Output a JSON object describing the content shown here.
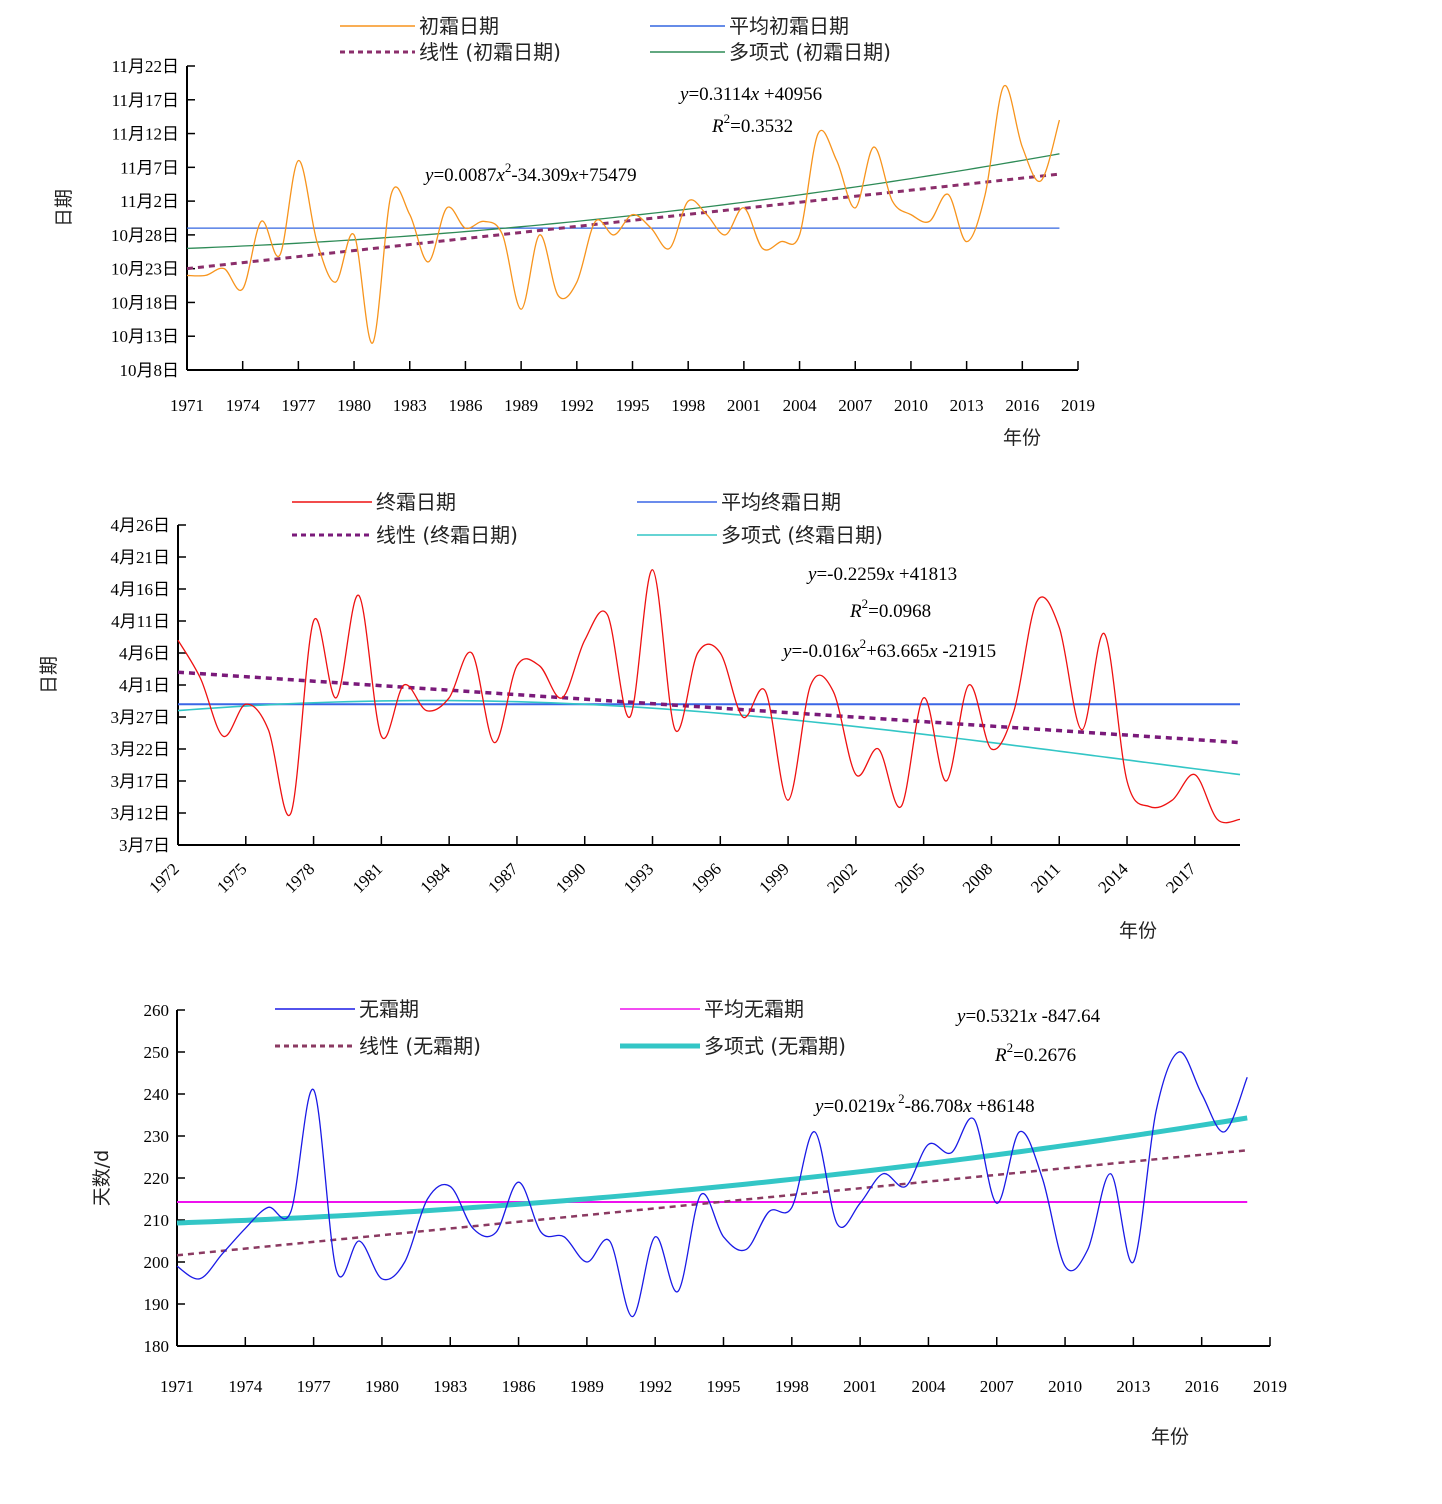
{
  "chart_data": [
    {
      "type": "line",
      "id": "first-frost",
      "title": "",
      "xlabel": "年份",
      "ylabel": "日期",
      "x_ticks": [
        "1971",
        "1974",
        "1977",
        "1980",
        "1983",
        "1986",
        "1989",
        "1992",
        "1995",
        "1998",
        "2001",
        "2004",
        "2007",
        "2010",
        "2013",
        "2016",
        "2019"
      ],
      "xlim": [
        1971,
        2019
      ],
      "y_ticks": [
        "10月8日",
        "10月13日",
        "10月18日",
        "10月23日",
        "10月28日",
        "11月2日",
        "11月7日",
        "11月12日",
        "11月17日",
        "11月22日"
      ],
      "ylim": [
        "10-08",
        "11-22"
      ],
      "legend": [
        {
          "label": "初霜日期",
          "color": "#F7941D",
          "style": "solid"
        },
        {
          "label": "平均初霜日期",
          "color": "#3366E0",
          "style": "solid"
        },
        {
          "label": "线性 (初霜日期)",
          "color": "#8B2E6B",
          "style": "dotted"
        },
        {
          "label": "多项式 (初霜日期)",
          "color": "#2E8B57",
          "style": "solid"
        }
      ],
      "annotations": {
        "poly_eq": {
          "y": "y",
          "body": "=0.0087",
          "x1": "x",
          "sup": "2",
          "rest": "-34.309",
          "x2": "x",
          "tail": "+75479"
        },
        "lin_eq": {
          "y": "y",
          "body": "=0.3114",
          "x1": "x",
          "tail": " +40956"
        },
        "r2": {
          "r": "R",
          "sup": "2",
          "tail": "=0.3532"
        }
      },
      "x": [
        1971,
        1972,
        1973,
        1974,
        1975,
        1976,
        1977,
        1978,
        1979,
        1980,
        1981,
        1982,
        1983,
        1984,
        1985,
        1986,
        1987,
        1988,
        1989,
        1990,
        1991,
        1992,
        1993,
        1994,
        1995,
        1996,
        1997,
        1998,
        1999,
        2000,
        2001,
        2002,
        2003,
        2004,
        2005,
        2006,
        2007,
        2008,
        2009,
        2010,
        2011,
        2012,
        2013,
        2014,
        2015,
        2016,
        2017,
        2018
      ],
      "series": [
        {
          "name": "初霜日期",
          "values": [
            "10-22",
            "10-22",
            "10-23",
            "10-20",
            "10-30",
            "10-25",
            "11-08",
            "10-27",
            "10-21",
            "10-28",
            "10-12",
            "11-03",
            "10-31",
            "10-24",
            "11-01",
            "10-29",
            "10-30",
            "10-28",
            "10-17",
            "10-28",
            "10-19",
            "10-21",
            "10-30",
            "10-28",
            "10-31",
            "10-29",
            "10-26",
            "11-02",
            "10-31",
            "10-28",
            "11-01",
            "10-26",
            "10-27",
            "10-28",
            "11-12",
            "11-08",
            "11-01",
            "11-10",
            "11-02",
            "10-31",
            "10-30",
            "11-03",
            "10-27",
            "11-03",
            "11-19",
            "11-10",
            "11-05",
            "11-14"
          ]
        },
        {
          "name": "平均初霜日期",
          "value": "10-29"
        },
        {
          "name": "线性 (初霜日期)",
          "slope_per_year": 0.3114,
          "start": "10-23",
          "end": "11-06"
        },
        {
          "name": "多项式 (初霜日期)",
          "start": "10-26",
          "end": "11-09"
        }
      ]
    },
    {
      "type": "line",
      "id": "last-frost",
      "title": "",
      "xlabel": "年份",
      "ylabel": "日期",
      "x_ticks": [
        "1972",
        "1975",
        "1978",
        "1981",
        "1984",
        "1987",
        "1990",
        "1993",
        "1996",
        "1999",
        "2002",
        "2005",
        "2008",
        "2011",
        "2014",
        "2017"
      ],
      "xlim": [
        1972,
        2019
      ],
      "y_ticks": [
        "3月7日",
        "3月12日",
        "3月17日",
        "3月22日",
        "3月27日",
        "4月1日",
        "4月6日",
        "4月11日",
        "4月16日",
        "4月21日",
        "4月26日"
      ],
      "ylim": [
        "03-07",
        "04-26"
      ],
      "legend": [
        {
          "label": "终霜日期",
          "color": "#EE1111",
          "style": "solid"
        },
        {
          "label": "平均终霜日期",
          "color": "#3A66E6",
          "style": "solid"
        },
        {
          "label": "线性 (终霜日期)",
          "color": "#7A1A7A",
          "style": "dotted"
        },
        {
          "label": "多项式 (终霜日期)",
          "color": "#33C6C6",
          "style": "solid"
        }
      ],
      "annotations": {
        "lin_eq": {
          "y": "y",
          "body": "=-0.2259",
          "x1": "x",
          "tail": " +41813"
        },
        "r2": {
          "r": "R",
          "sup": "2",
          "tail": "=0.0968"
        },
        "poly_eq": {
          "y": "y",
          "body": "=-0.016",
          "x1": "x",
          "sup": "2",
          "rest": "+63.665",
          "x2": "x",
          "tail": " -21915"
        }
      },
      "x": [
        1972,
        1973,
        1974,
        1975,
        1976,
        1977,
        1978,
        1979,
        1980,
        1981,
        1982,
        1983,
        1984,
        1985,
        1986,
        1987,
        1988,
        1989,
        1990,
        1991,
        1992,
        1993,
        1994,
        1995,
        1996,
        1997,
        1998,
        1999,
        2000,
        2001,
        2002,
        2003,
        2004,
        2005,
        2006,
        2007,
        2008,
        2009,
        2010,
        2011,
        2012,
        2013,
        2014,
        2015,
        2016,
        2017,
        2018,
        2019
      ],
      "series": [
        {
          "name": "终霜日期",
          "values": [
            "04-08",
            "04-02",
            "03-24",
            "03-29",
            "03-25",
            "03-12",
            "04-11",
            "03-30",
            "04-15",
            "03-24",
            "04-01",
            "03-28",
            "03-30",
            "04-06",
            "03-23",
            "04-04",
            "04-04",
            "03-30",
            "04-08",
            "04-12",
            "03-27",
            "04-19",
            "03-25",
            "04-06",
            "04-06",
            "03-27",
            "03-31",
            "03-14",
            "04-01",
            "03-31",
            "03-18",
            "03-22",
            "03-13",
            "03-30",
            "03-17",
            "04-01",
            "03-22",
            "03-28",
            "04-14",
            "04-10",
            "03-25",
            "04-09",
            "03-17",
            "03-13",
            "03-14",
            "03-18",
            "03-11",
            "03-11"
          ]
        },
        {
          "name": "平均终霜日期",
          "value": "03-29"
        },
        {
          "name": "线性 (终霜日期)",
          "slope_per_year": -0.2259,
          "start": "04-03",
          "end": "03-23"
        },
        {
          "name": "多项式 (终霜日期)",
          "start": "03-28",
          "end": "03-18"
        }
      ]
    },
    {
      "type": "line",
      "id": "frost-free",
      "title": "",
      "xlabel": "年份",
      "ylabel": "天数/d",
      "x_ticks": [
        "1971",
        "1974",
        "1977",
        "1980",
        "1983",
        "1986",
        "1989",
        "1992",
        "1995",
        "1998",
        "2001",
        "2004",
        "2007",
        "2010",
        "2013",
        "2016",
        "2019"
      ],
      "xlim": [
        1971,
        2019
      ],
      "y_ticks": [
        "180",
        "190",
        "200",
        "210",
        "220",
        "230",
        "240",
        "250",
        "260"
      ],
      "ylim": [
        180,
        260
      ],
      "legend": [
        {
          "label": "无霜期",
          "color": "#1A1AE6",
          "style": "solid"
        },
        {
          "label": "平均无霜期",
          "color": "#EE11EE",
          "style": "solid"
        },
        {
          "label": "线性 (无霜期)",
          "color": "#8B3A62",
          "style": "dotted"
        },
        {
          "label": "多项式 (无霜期)",
          "color": "#33C6C6",
          "style": "thick"
        }
      ],
      "annotations": {
        "lin_eq": {
          "y": "y",
          "body": "=0.5321",
          "x1": "x",
          "tail": " -847.64"
        },
        "r2": {
          "r": "R",
          "sup": "2",
          "tail": "=0.2676"
        },
        "poly_eq": {
          "y": "y",
          "body": "=0.0219",
          "x1": "x",
          "sup": " 2",
          "rest": "-86.708",
          "x2": "x",
          "tail": " +86148"
        }
      },
      "x": [
        1971,
        1972,
        1973,
        1974,
        1975,
        1976,
        1977,
        1978,
        1979,
        1980,
        1981,
        1982,
        1983,
        1984,
        1985,
        1986,
        1987,
        1988,
        1989,
        1990,
        1991,
        1992,
        1993,
        1994,
        1995,
        1996,
        1997,
        1998,
        1999,
        2000,
        2001,
        2002,
        2003,
        2004,
        2005,
        2006,
        2007,
        2008,
        2009,
        2010,
        2011,
        2012,
        2013,
        2014,
        2015,
        2016,
        2017,
        2018
      ],
      "series": [
        {
          "name": "无霜期",
          "values": [
            199,
            196,
            202,
            208,
            213,
            212,
            241,
            198,
            205,
            196,
            200,
            215,
            218,
            208,
            207,
            219,
            207,
            206,
            200,
            205,
            187,
            206,
            193,
            216,
            206,
            203,
            212,
            213,
            231,
            209,
            214,
            221,
            218,
            228,
            226,
            234,
            214,
            231,
            220,
            199,
            203,
            221,
            200,
            236,
            250,
            240,
            231,
            244
          ]
        },
        {
          "name": "平均无霜期",
          "value": 214.3
        },
        {
          "name": "线性 (无霜期)",
          "slope_per_year": 0.5321,
          "start": 201.6,
          "end": 226.6
        },
        {
          "name": "多项式 (无霜期)",
          "poly": [
            0.0219,
            -86.708,
            86148
          ],
          "start": 209.3,
          "end": 234.3
        }
      ]
    }
  ]
}
